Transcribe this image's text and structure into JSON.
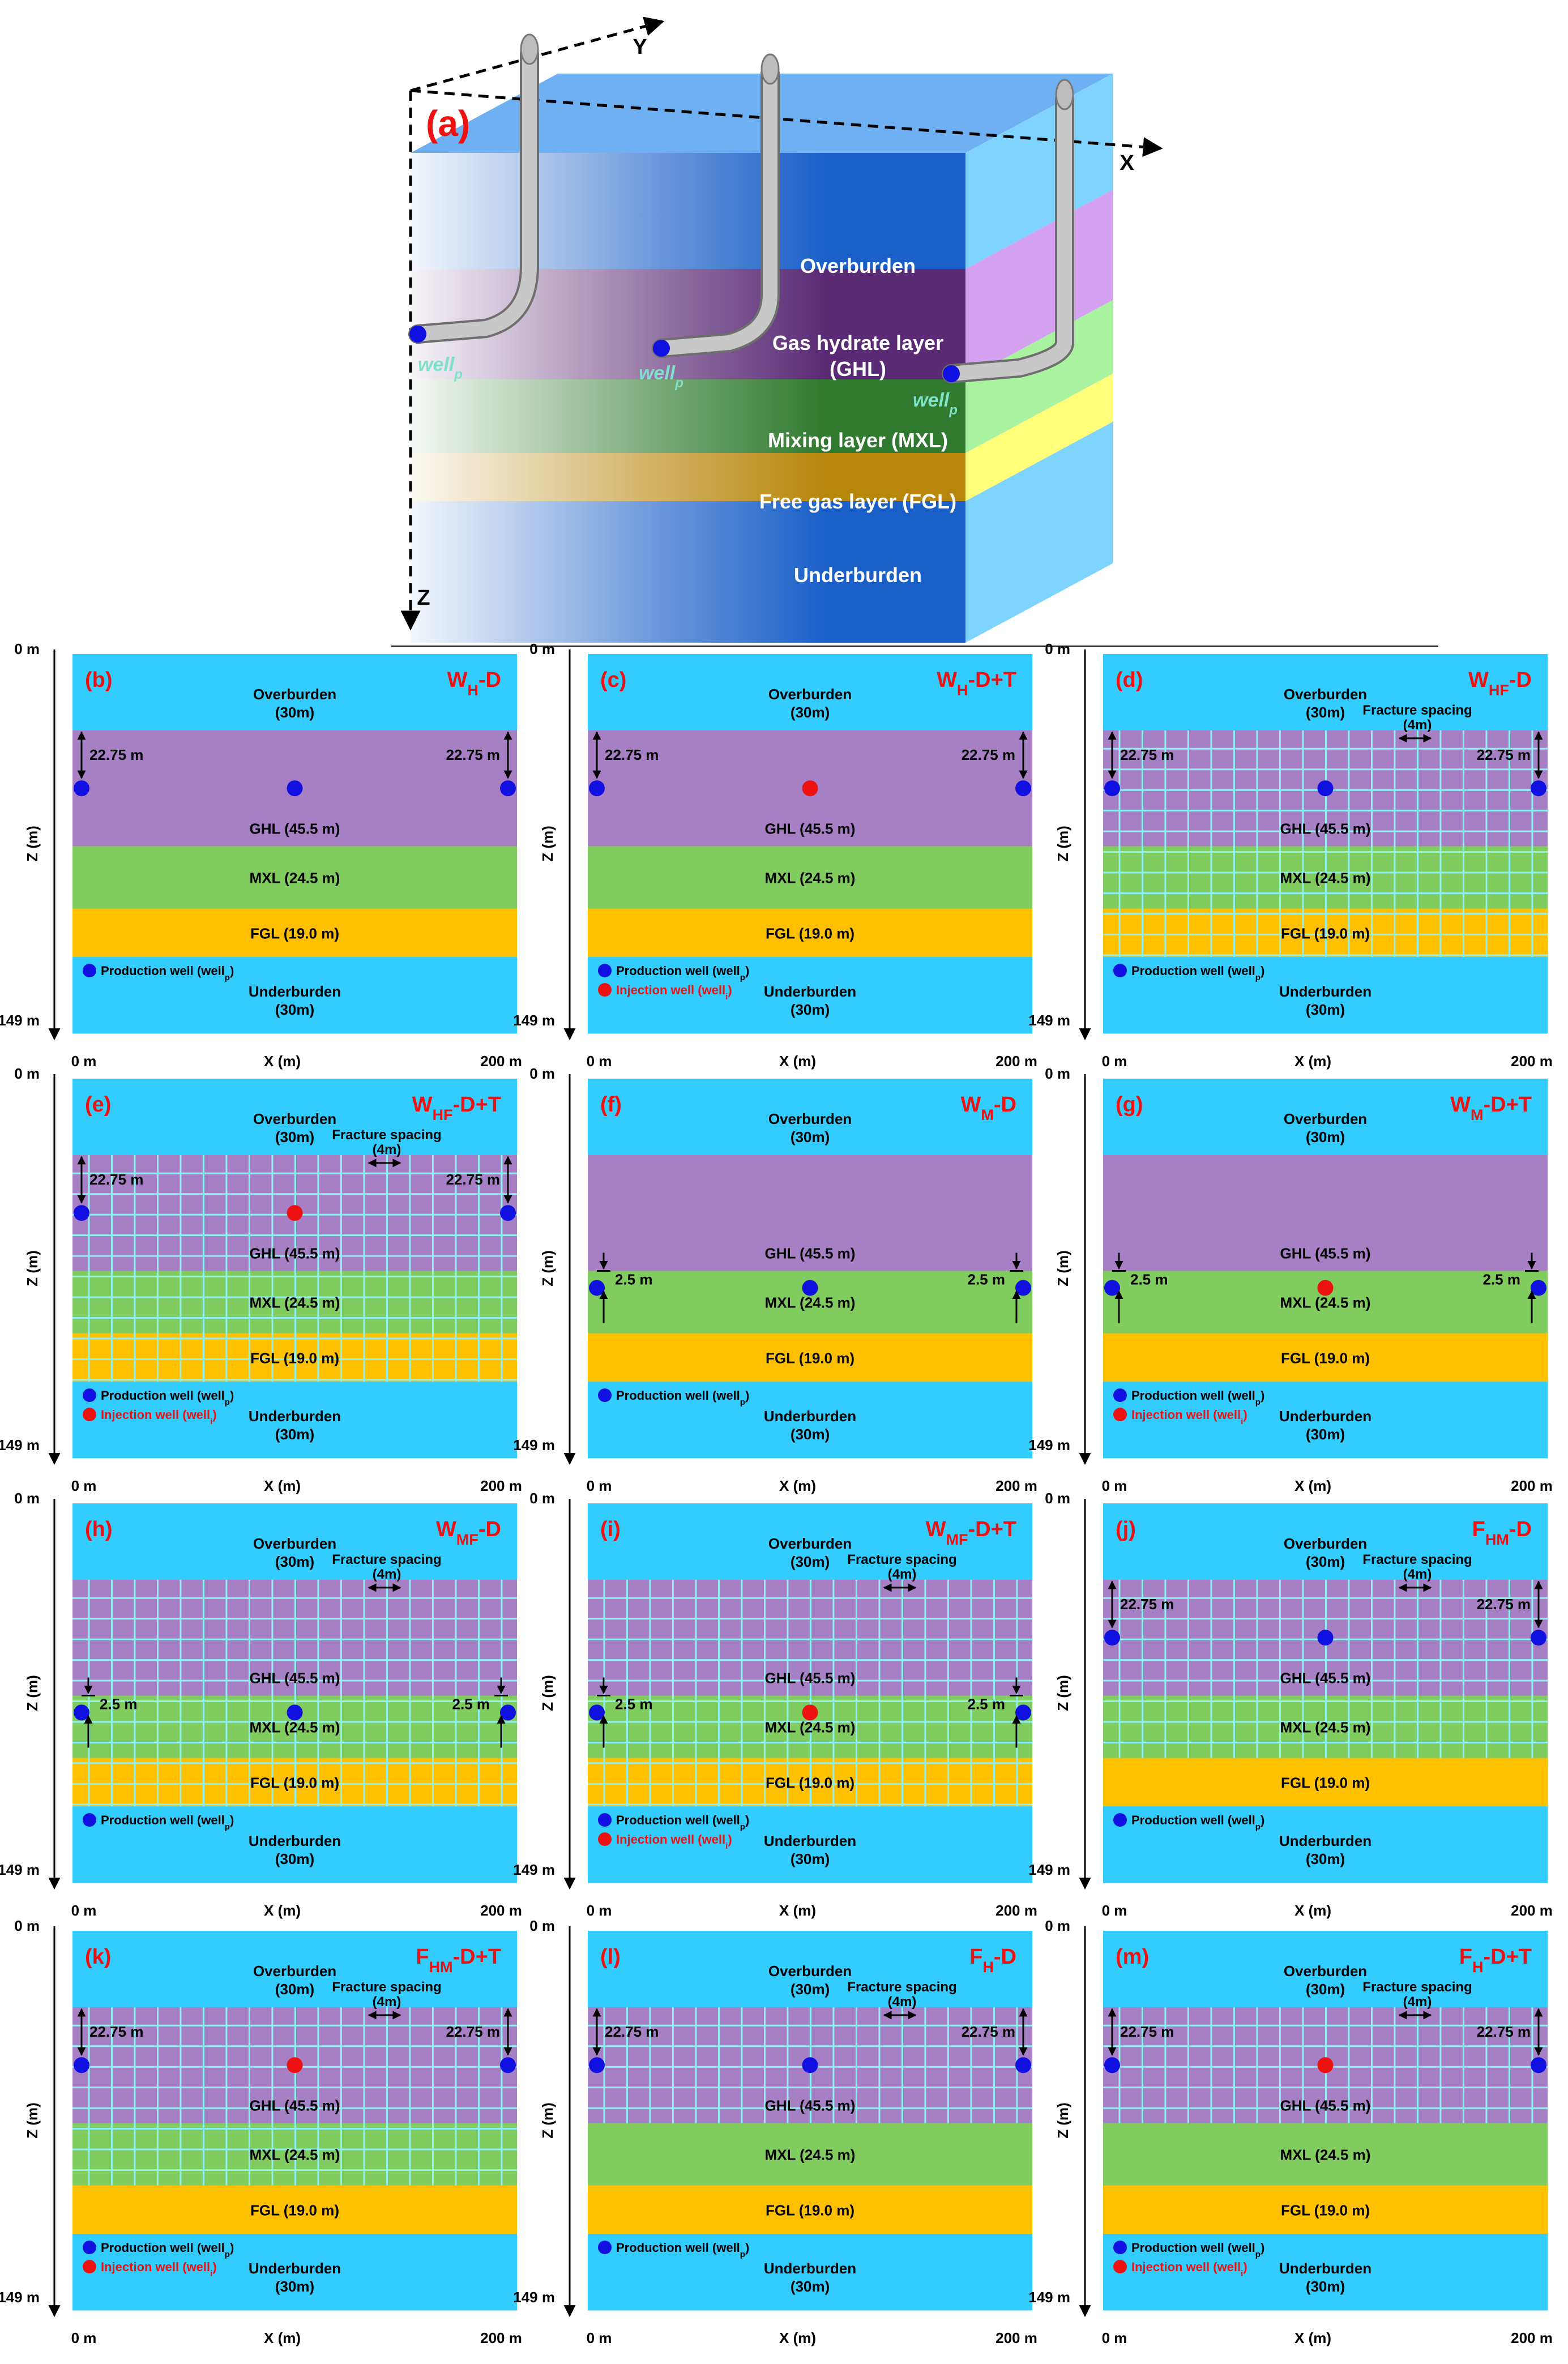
{
  "colors": {
    "overburden": "#33ccff",
    "ghl": "#a77fc4",
    "mxl": "#80cc5f",
    "fgl": "#ffc000",
    "underburden": "#33ccff",
    "fracture": "#8ff0f2",
    "production_well": "#1010e0",
    "injection_well": "#ee1111",
    "panel_title": "#ee1111",
    "block_front": "#1a5fc8",
    "block_side": "#7fd4ff",
    "block_top": "#6fb0f2",
    "pipe": "#c8c8c8"
  },
  "panel_a": {
    "label": "(a)",
    "axes": {
      "x": "X",
      "y": "Y",
      "z": "Z"
    },
    "layers": [
      {
        "text": "Overburden",
        "sub": ""
      },
      {
        "text": "Gas hydrate layer",
        "sub": "(GHL)"
      },
      {
        "text": "Mixing layer (MXL)",
        "sub": ""
      },
      {
        "text": "Free gas layer (FGL)",
        "sub": ""
      },
      {
        "text": "Underburden",
        "sub": ""
      }
    ],
    "well_label": "well",
    "well_sub": "p"
  },
  "common": {
    "z_top": "0 m",
    "z_bottom": "149 m",
    "x_left": "0 m",
    "x_label": "X (m)",
    "x_right": "200 m",
    "z_label": "Z (m)",
    "overburden_1": "Overburden",
    "overburden_2": "(30m)",
    "ghl": "GHL (45.5 m)",
    "mxl": "MXL (24.5 m)",
    "fgl": "FGL (19.0 m)",
    "underburden_1": "Underburden",
    "underburden_2": "(30m)",
    "prod_legend": "Production well (well",
    "prod_sub": "p",
    "inj_legend": "Injection well (well",
    "inj_sub": "i",
    "frac_1": "Fracture spacing",
    "frac_2": "(4m)",
    "dist_ghl": "22.75 m",
    "dist_mxl": "2.5 m"
  },
  "panels": [
    {
      "label": "(b)",
      "main": "W",
      "sub": "H",
      "suffix": "-D",
      "well_layer": "ghl",
      "injection": false,
      "fracture": "none"
    },
    {
      "label": "(c)",
      "main": "W",
      "sub": "H",
      "suffix": "-D+T",
      "well_layer": "ghl",
      "injection": true,
      "fracture": "none"
    },
    {
      "label": "(d)",
      "main": "W",
      "sub": "HF",
      "suffix": "-D",
      "well_layer": "ghl",
      "injection": false,
      "fracture": "all"
    },
    {
      "label": "(e)",
      "main": "W",
      "sub": "HF",
      "suffix": "-D+T",
      "well_layer": "ghl",
      "injection": true,
      "fracture": "all"
    },
    {
      "label": "(f)",
      "main": "W",
      "sub": "M",
      "suffix": "-D",
      "well_layer": "mxl",
      "injection": false,
      "fracture": "none"
    },
    {
      "label": "(g)",
      "main": "W",
      "sub": "M",
      "suffix": "-D+T",
      "well_layer": "mxl",
      "injection": true,
      "fracture": "none"
    },
    {
      "label": "(h)",
      "main": "W",
      "sub": "MF",
      "suffix": "-D",
      "well_layer": "mxl",
      "injection": false,
      "fracture": "all"
    },
    {
      "label": "(i)",
      "main": "W",
      "sub": "MF",
      "suffix": "-D+T",
      "well_layer": "mxl",
      "injection": true,
      "fracture": "all"
    },
    {
      "label": "(j)",
      "main": "F",
      "sub": "HM",
      "suffix": "-D",
      "well_layer": "ghl",
      "injection": false,
      "fracture": "ghl_mxl"
    },
    {
      "label": "(k)",
      "main": "F",
      "sub": "HM",
      "suffix": "-D+T",
      "well_layer": "ghl",
      "injection": true,
      "fracture": "ghl_mxl"
    },
    {
      "label": "(l)",
      "main": "F",
      "sub": "H",
      "suffix": "-D",
      "well_layer": "ghl",
      "injection": false,
      "fracture": "ghl"
    },
    {
      "label": "(m)",
      "main": "F",
      "sub": "H",
      "suffix": "-D+T",
      "well_layer": "ghl",
      "injection": true,
      "fracture": "ghl"
    }
  ]
}
